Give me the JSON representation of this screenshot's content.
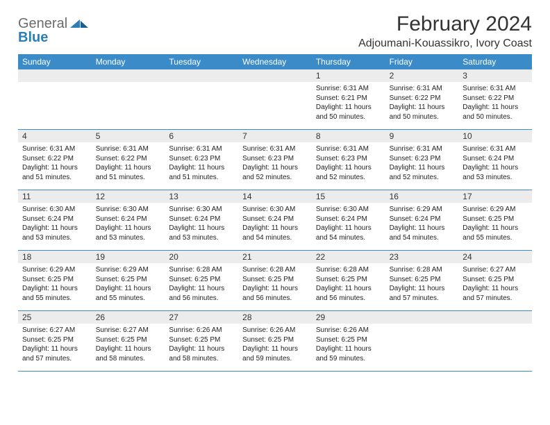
{
  "logo": {
    "textGray": "General",
    "textBlue": "Blue"
  },
  "title": "February 2024",
  "location": "Adjoumani-Kouassikro, Ivory Coast",
  "colors": {
    "headerBar": "#3b8bc9",
    "dayStripe": "#ececec",
    "text": "#333333",
    "logoGray": "#6b6b6b",
    "logoBlue": "#2a7fba",
    "background": "#ffffff"
  },
  "typography": {
    "title_fontsize": 30,
    "location_fontsize": 16,
    "weekday_fontsize": 12,
    "daynum_fontsize": 12,
    "detail_fontsize": 10
  },
  "weekdays": [
    "Sunday",
    "Monday",
    "Tuesday",
    "Wednesday",
    "Thursday",
    "Friday",
    "Saturday"
  ],
  "weeks": [
    [
      {
        "empty": true
      },
      {
        "empty": true
      },
      {
        "empty": true
      },
      {
        "empty": true
      },
      {
        "day": "1",
        "sunrise": "Sunrise: 6:31 AM",
        "sunset": "Sunset: 6:21 PM",
        "daylight": "Daylight: 11 hours and 50 minutes."
      },
      {
        "day": "2",
        "sunrise": "Sunrise: 6:31 AM",
        "sunset": "Sunset: 6:22 PM",
        "daylight": "Daylight: 11 hours and 50 minutes."
      },
      {
        "day": "3",
        "sunrise": "Sunrise: 6:31 AM",
        "sunset": "Sunset: 6:22 PM",
        "daylight": "Daylight: 11 hours and 50 minutes."
      }
    ],
    [
      {
        "day": "4",
        "sunrise": "Sunrise: 6:31 AM",
        "sunset": "Sunset: 6:22 PM",
        "daylight": "Daylight: 11 hours and 51 minutes."
      },
      {
        "day": "5",
        "sunrise": "Sunrise: 6:31 AM",
        "sunset": "Sunset: 6:22 PM",
        "daylight": "Daylight: 11 hours and 51 minutes."
      },
      {
        "day": "6",
        "sunrise": "Sunrise: 6:31 AM",
        "sunset": "Sunset: 6:23 PM",
        "daylight": "Daylight: 11 hours and 51 minutes."
      },
      {
        "day": "7",
        "sunrise": "Sunrise: 6:31 AM",
        "sunset": "Sunset: 6:23 PM",
        "daylight": "Daylight: 11 hours and 52 minutes."
      },
      {
        "day": "8",
        "sunrise": "Sunrise: 6:31 AM",
        "sunset": "Sunset: 6:23 PM",
        "daylight": "Daylight: 11 hours and 52 minutes."
      },
      {
        "day": "9",
        "sunrise": "Sunrise: 6:31 AM",
        "sunset": "Sunset: 6:23 PM",
        "daylight": "Daylight: 11 hours and 52 minutes."
      },
      {
        "day": "10",
        "sunrise": "Sunrise: 6:31 AM",
        "sunset": "Sunset: 6:24 PM",
        "daylight": "Daylight: 11 hours and 53 minutes."
      }
    ],
    [
      {
        "day": "11",
        "sunrise": "Sunrise: 6:30 AM",
        "sunset": "Sunset: 6:24 PM",
        "daylight": "Daylight: 11 hours and 53 minutes."
      },
      {
        "day": "12",
        "sunrise": "Sunrise: 6:30 AM",
        "sunset": "Sunset: 6:24 PM",
        "daylight": "Daylight: 11 hours and 53 minutes."
      },
      {
        "day": "13",
        "sunrise": "Sunrise: 6:30 AM",
        "sunset": "Sunset: 6:24 PM",
        "daylight": "Daylight: 11 hours and 53 minutes."
      },
      {
        "day": "14",
        "sunrise": "Sunrise: 6:30 AM",
        "sunset": "Sunset: 6:24 PM",
        "daylight": "Daylight: 11 hours and 54 minutes."
      },
      {
        "day": "15",
        "sunrise": "Sunrise: 6:30 AM",
        "sunset": "Sunset: 6:24 PM",
        "daylight": "Daylight: 11 hours and 54 minutes."
      },
      {
        "day": "16",
        "sunrise": "Sunrise: 6:29 AM",
        "sunset": "Sunset: 6:24 PM",
        "daylight": "Daylight: 11 hours and 54 minutes."
      },
      {
        "day": "17",
        "sunrise": "Sunrise: 6:29 AM",
        "sunset": "Sunset: 6:25 PM",
        "daylight": "Daylight: 11 hours and 55 minutes."
      }
    ],
    [
      {
        "day": "18",
        "sunrise": "Sunrise: 6:29 AM",
        "sunset": "Sunset: 6:25 PM",
        "daylight": "Daylight: 11 hours and 55 minutes."
      },
      {
        "day": "19",
        "sunrise": "Sunrise: 6:29 AM",
        "sunset": "Sunset: 6:25 PM",
        "daylight": "Daylight: 11 hours and 55 minutes."
      },
      {
        "day": "20",
        "sunrise": "Sunrise: 6:28 AM",
        "sunset": "Sunset: 6:25 PM",
        "daylight": "Daylight: 11 hours and 56 minutes."
      },
      {
        "day": "21",
        "sunrise": "Sunrise: 6:28 AM",
        "sunset": "Sunset: 6:25 PM",
        "daylight": "Daylight: 11 hours and 56 minutes."
      },
      {
        "day": "22",
        "sunrise": "Sunrise: 6:28 AM",
        "sunset": "Sunset: 6:25 PM",
        "daylight": "Daylight: 11 hours and 56 minutes."
      },
      {
        "day": "23",
        "sunrise": "Sunrise: 6:28 AM",
        "sunset": "Sunset: 6:25 PM",
        "daylight": "Daylight: 11 hours and 57 minutes."
      },
      {
        "day": "24",
        "sunrise": "Sunrise: 6:27 AM",
        "sunset": "Sunset: 6:25 PM",
        "daylight": "Daylight: 11 hours and 57 minutes."
      }
    ],
    [
      {
        "day": "25",
        "sunrise": "Sunrise: 6:27 AM",
        "sunset": "Sunset: 6:25 PM",
        "daylight": "Daylight: 11 hours and 57 minutes."
      },
      {
        "day": "26",
        "sunrise": "Sunrise: 6:27 AM",
        "sunset": "Sunset: 6:25 PM",
        "daylight": "Daylight: 11 hours and 58 minutes."
      },
      {
        "day": "27",
        "sunrise": "Sunrise: 6:26 AM",
        "sunset": "Sunset: 6:25 PM",
        "daylight": "Daylight: 11 hours and 58 minutes."
      },
      {
        "day": "28",
        "sunrise": "Sunrise: 6:26 AM",
        "sunset": "Sunset: 6:25 PM",
        "daylight": "Daylight: 11 hours and 59 minutes."
      },
      {
        "day": "29",
        "sunrise": "Sunrise: 6:26 AM",
        "sunset": "Sunset: 6:25 PM",
        "daylight": "Daylight: 11 hours and 59 minutes."
      },
      {
        "empty": true
      },
      {
        "empty": true
      }
    ]
  ]
}
